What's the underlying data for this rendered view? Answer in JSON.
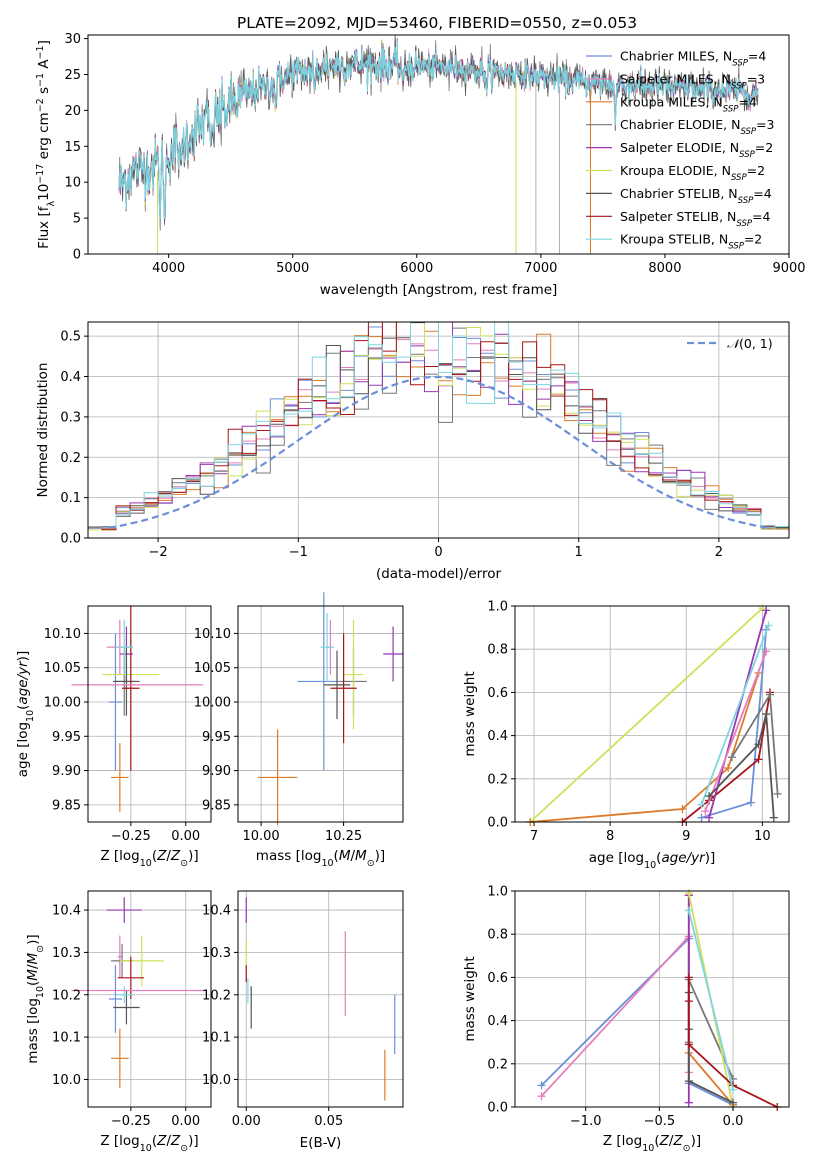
{
  "figure": {
    "title": "PLATE=2092, MJD=53460, FIBERID=0550, z=0.053"
  },
  "colors": {
    "Chabrier MILES": "#6b8fd9",
    "Salpeter MILES": "#e37fbd",
    "Kroupa MILES": "#de7b29",
    "Chabrier ELODIE": "#777777",
    "Salpeter ELODIE": "#9a35b3",
    "Kroupa ELODIE": "#cfe05a",
    "Chabrier STELIB": "#555555",
    "Salpeter STELIB": "#a8141a",
    "Kroupa STELIB": "#7dd6e0"
  },
  "legend_labels": [
    "Chabrier MILES, N$_{SSP}$=4",
    "Salpeter MILES, N$_{SSP}$=3",
    "Kroupa MILES, N$_{SSP}$=4",
    "Chabrier ELODIE, N$_{SSP}$=3",
    "Salpeter ELODIE, N$_{SSP}$=2",
    "Kroupa ELODIE, N$_{SSP}$=2",
    "Chabrier STELIB, N$_{SSP}$=4",
    "Salpeter STELIB, N$_{SSP}$=4",
    "Kroupa STELIB, N$_{SSP}$=2"
  ],
  "legend_display": [
    {
      "name": "Chabrier MILES, N",
      "sub": "SSP",
      "tail": "=4"
    },
    {
      "name": "Salpeter MILES, N",
      "sub": "SSP",
      "tail": "=3"
    },
    {
      "name": "Kroupa MILES, N",
      "sub": "SSP",
      "tail": "=4"
    },
    {
      "name": "Chabrier ELODIE, N",
      "sub": "SSP",
      "tail": "=3"
    },
    {
      "name": "Salpeter ELODIE, N",
      "sub": "SSP",
      "tail": "=2"
    },
    {
      "name": "Kroupa ELODIE, N",
      "sub": "SSP",
      "tail": "=2"
    },
    {
      "name": "Chabrier STELIB, N",
      "sub": "SSP",
      "tail": "=4"
    },
    {
      "name": "Salpeter STELIB, N",
      "sub": "SSP",
      "tail": "=4"
    },
    {
      "name": "Kroupa STELIB, N",
      "sub": "SSP",
      "tail": "=2"
    }
  ],
  "chart_data": [
    {
      "id": "spectrum",
      "type": "line",
      "xlabel": "wavelength [Angstrom, rest frame]",
      "ylabel_parts": [
        "Flux [f",
        "λ",
        "10",
        "−17",
        " erg cm",
        "−2",
        " s",
        "−1",
        " A",
        "−1",
        "]"
      ],
      "xlim": [
        3350,
        9000
      ],
      "ylim": [
        0,
        30.5
      ],
      "xticks": [
        4000,
        5000,
        6000,
        7000,
        8000,
        9000
      ],
      "yticks": [
        0,
        5,
        10,
        15,
        20,
        25,
        30
      ],
      "continuum_knots": [
        [
          3600,
          9.5
        ],
        [
          3700,
          11.5
        ],
        [
          3900,
          12.5
        ],
        [
          4000,
          14
        ],
        [
          4200,
          17
        ],
        [
          4400,
          19.5
        ],
        [
          4600,
          22
        ],
        [
          4800,
          23.5
        ],
        [
          5000,
          25
        ],
        [
          5300,
          26.2
        ],
        [
          5600,
          26.5
        ],
        [
          6000,
          26.3
        ],
        [
          6400,
          25.8
        ],
        [
          6800,
          25.2
        ],
        [
          7200,
          24.2
        ],
        [
          7600,
          23.6
        ],
        [
          8000,
          23.3
        ],
        [
          8400,
          22.8
        ],
        [
          8750,
          22.5
        ]
      ],
      "deep_features": [
        [
          3930,
          3
        ],
        [
          3968,
          3
        ],
        [
          4101,
          12.5
        ],
        [
          4340,
          15
        ],
        [
          4861,
          19.5
        ],
        [
          5175,
          22.5
        ],
        [
          5890,
          23.5
        ],
        [
          6563,
          22.5
        ],
        [
          7600,
          18
        ]
      ],
      "spikes": [
        [
          6800,
          0
        ],
        [
          6960,
          0
        ],
        [
          7150,
          0
        ],
        [
          7400,
          0
        ],
        [
          3910,
          0
        ]
      ],
      "wave_range": [
        3600,
        8750
      ],
      "legend_position": "right"
    },
    {
      "id": "residuals",
      "type": "histogram",
      "xlabel": "(data-model)/error",
      "ylabel": "Normed distribution",
      "xlim": [
        -2.5,
        2.5
      ],
      "ylim": [
        0,
        0.535
      ],
      "xticks": [
        -2,
        -1,
        0,
        1,
        2
      ],
      "yticks": [
        0,
        0.1,
        0.2,
        0.3,
        0.4,
        0.5
      ],
      "bins": 50,
      "legend": "N(0,1)",
      "legend_position": "top-right",
      "grid": true
    },
    {
      "id": "age_vs_Z",
      "type": "errorbar",
      "xlabel": "Z [log10(Z/Z☉)]",
      "ylabel": "age [log10(age/yr)]",
      "xlim": [
        -0.445,
        0.115
      ],
      "ylim": [
        9.825,
        10.14
      ],
      "xticks": [
        -0.25,
        0.0
      ],
      "yticks": [
        9.85,
        9.9,
        9.95,
        10.0,
        10.05,
        10.1
      ],
      "points": [
        {
          "model": "Chabrier MILES",
          "x": -0.32,
          "xerr": 0.03,
          "y": 10.0,
          "yerr": 0.1
        },
        {
          "model": "Salpeter MILES",
          "x": -0.3,
          "xerr": 0.06,
          "y": 10.08,
          "yerr": 0.04
        },
        {
          "model": "Kroupa MILES",
          "x": -0.3,
          "xerr": 0.04,
          "y": 9.89,
          "yerr": 0.05
        },
        {
          "model": "Chabrier ELODIE",
          "x": -0.28,
          "xerr": 0.05,
          "y": 10.03,
          "yerr": 0.05
        },
        {
          "model": "Salpeter ELODIE",
          "x": -0.27,
          "xerr": 0.03,
          "y": 10.07,
          "yerr": 0.04
        },
        {
          "model": "Kroupa ELODIE",
          "x": -0.25,
          "xerr": 0.13,
          "y": 10.04,
          "yerr": 0.07
        },
        {
          "model": "Chabrier STELIB",
          "x": -0.27,
          "xerr": 0.06,
          "y": 10.03,
          "yerr": 0.05
        },
        {
          "model": "Salpeter STELIB",
          "x": -0.25,
          "xerr": 0.04,
          "y": 10.02,
          "yerr": 0.12
        },
        {
          "model": "Kroupa STELIB",
          "x": -0.28,
          "xerr": 0.04,
          "y": 10.08,
          "yerr": 0.04
        },
        {
          "model": "Salpeter MILES",
          "x": -0.22,
          "xerr": 0.3,
          "y": 10.025,
          "yerr": 0.0
        }
      ]
    },
    {
      "id": "age_vs_mass",
      "type": "errorbar",
      "xlabel": "mass [log10(M/M☉)]",
      "ylabel": "",
      "xlim": [
        9.93,
        10.43
      ],
      "ylim": [
        9.825,
        10.14
      ],
      "xticks": [
        10.0,
        10.25
      ],
      "yticks": [
        9.85,
        9.9,
        9.95,
        10.0,
        10.05,
        10.1
      ],
      "points": [
        {
          "model": "Chabrier MILES",
          "x": 10.19,
          "xerr": 0.08,
          "y": 10.03,
          "yerr": 0.13
        },
        {
          "model": "Salpeter MILES",
          "x": 10.21,
          "xerr": 0.01,
          "y": 10.08,
          "yerr": 0.04
        },
        {
          "model": "Kroupa MILES",
          "x": 10.05,
          "xerr": 0.06,
          "y": 9.89,
          "yerr": 0.07
        },
        {
          "model": "Chabrier ELODIE",
          "x": 10.28,
          "xerr": 0.04,
          "y": 10.03,
          "yerr": 0.05
        },
        {
          "model": "Salpeter ELODIE",
          "x": 10.4,
          "xerr": 0.03,
          "y": 10.07,
          "yerr": 0.04
        },
        {
          "model": "Kroupa ELODIE",
          "x": 10.28,
          "xerr": 0.03,
          "y": 10.04,
          "yerr": 0.08
        },
        {
          "model": "Chabrier STELIB",
          "x": 10.23,
          "xerr": 0.04,
          "y": 10.025,
          "yerr": 0.05
        },
        {
          "model": "Salpeter STELIB",
          "x": 10.25,
          "xerr": 0.04,
          "y": 10.02,
          "yerr": 0.08
        },
        {
          "model": "Kroupa STELIB",
          "x": 10.2,
          "xerr": 0.02,
          "y": 10.08,
          "yerr": 0.05
        }
      ]
    },
    {
      "id": "mass_weight_vs_age",
      "type": "line",
      "xlabel": "age [log10(age/yr)]",
      "ylabel": "mass weight",
      "xlim": [
        6.75,
        10.35
      ],
      "ylim": [
        0,
        1.0
      ],
      "xticks": [
        7,
        8,
        9,
        10
      ],
      "yticks": [
        0.0,
        0.2,
        0.4,
        0.6,
        0.8,
        1.0
      ],
      "grid": true,
      "series": [
        {
          "model": "Kroupa ELODIE",
          "x": [
            6.95,
            10.0
          ],
          "y": [
            0.0,
            0.99
          ]
        },
        {
          "model": "Kroupa MILES",
          "x": [
            6.95,
            8.95,
            9.55,
            9.95
          ],
          "y": [
            0.0,
            0.06,
            0.25,
            0.69
          ]
        },
        {
          "model": "Chabrier MILES",
          "x": [
            9.2,
            9.85,
            10.05
          ],
          "y": [
            0.02,
            0.09,
            0.89
          ]
        },
        {
          "model": "Salpeter STELIB",
          "x": [
            8.95,
            9.3,
            9.95,
            10.1
          ],
          "y": [
            0.0,
            0.1,
            0.29,
            0.6
          ]
        },
        {
          "model": "Salpeter ELODIE",
          "x": [
            9.3,
            10.05
          ],
          "y": [
            0.02,
            0.98
          ]
        },
        {
          "model": "Kroupa STELIB",
          "x": [
            9.2,
            10.08
          ],
          "y": [
            0.08,
            0.91
          ]
        },
        {
          "model": "Salpeter MILES",
          "x": [
            9.25,
            10.05
          ],
          "y": [
            0.05,
            0.79
          ]
        },
        {
          "model": "Chabrier STELIB",
          "x": [
            9.3,
            9.95,
            10.05,
            10.15
          ],
          "y": [
            0.12,
            0.36,
            0.5,
            0.02
          ]
        },
        {
          "model": "Chabrier ELODIE",
          "x": [
            9.6,
            10.1,
            10.2
          ],
          "y": [
            0.3,
            0.59,
            0.13
          ]
        }
      ]
    },
    {
      "id": "mass_vs_Z",
      "type": "errorbar",
      "xlabel": "Z [log10(Z/Z☉)]",
      "ylabel": "mass [log10(M/M☉)]",
      "xlim": [
        -0.445,
        0.115
      ],
      "ylim": [
        9.935,
        10.445
      ],
      "xticks": [
        -0.25,
        0.0
      ],
      "yticks": [
        10.0,
        10.1,
        10.2,
        10.3,
        10.4
      ],
      "points": [
        {
          "model": "Chabrier MILES",
          "x": -0.32,
          "xerr": 0.03,
          "y": 10.19,
          "yerr": 0.08
        },
        {
          "model": "Salpeter MILES",
          "x": -0.3,
          "xerr": 0.01,
          "y": 10.29,
          "yerr": 0.05
        },
        {
          "model": "Kroupa MILES",
          "x": -0.3,
          "xerr": 0.04,
          "y": 10.05,
          "yerr": 0.07
        },
        {
          "model": "Chabrier ELODIE",
          "x": -0.29,
          "xerr": 0.05,
          "y": 10.28,
          "yerr": 0.04
        },
        {
          "model": "Salpeter ELODIE",
          "x": -0.28,
          "xerr": 0.08,
          "y": 10.4,
          "yerr": 0.03
        },
        {
          "model": "Kroupa ELODIE",
          "x": -0.2,
          "xerr": 0.1,
          "y": 10.28,
          "yerr": 0.06
        },
        {
          "model": "Chabrier STELIB",
          "x": -0.27,
          "xerr": 0.06,
          "y": 10.17,
          "yerr": 0.04
        },
        {
          "model": "Salpeter STELIB",
          "x": -0.25,
          "xerr": 0.06,
          "y": 10.24,
          "yerr": 0.05
        },
        {
          "model": "Kroupa STELIB",
          "x": -0.28,
          "xerr": 0.04,
          "y": 10.2,
          "yerr": 0.02
        },
        {
          "model": "Salpeter MILES",
          "x": -0.22,
          "xerr": 0.3,
          "y": 10.21,
          "yerr": 0.0
        }
      ]
    },
    {
      "id": "mass_vs_EBV",
      "type": "errorbar",
      "xlabel": "E(B-V)",
      "ylabel": "",
      "xlim": [
        -0.005,
        0.095
      ],
      "ylim": [
        9.935,
        10.445
      ],
      "xticks": [
        0.0,
        0.05
      ],
      "yticks": [
        10.0,
        10.1,
        10.2,
        10.3,
        10.4
      ],
      "points": [
        {
          "model": "Salpeter ELODIE",
          "x": 0.0,
          "xerr": 0,
          "y": 10.4,
          "yerr": 0.03
        },
        {
          "model": "Kroupa ELODIE",
          "x": 0.0,
          "xerr": 0,
          "y": 10.3,
          "yerr": 0.03
        },
        {
          "model": "Salpeter STELIB",
          "x": 0.0,
          "xerr": 0,
          "y": 10.25,
          "yerr": 0.02
        },
        {
          "model": "Kroupa STELIB",
          "x": 0.001,
          "xerr": 0,
          "y": 10.21,
          "yerr": 0.03
        },
        {
          "model": "Chabrier STELIB",
          "x": 0.003,
          "xerr": 0,
          "y": 10.17,
          "yerr": 0.05
        },
        {
          "model": "Salpeter MILES",
          "x": 0.06,
          "xerr": 0,
          "y": 10.25,
          "yerr": 0.1
        },
        {
          "model": "Kroupa MILES",
          "x": 0.084,
          "xerr": 0,
          "y": 10.01,
          "yerr": 0.06
        },
        {
          "model": "Chabrier MILES",
          "x": 0.09,
          "xerr": 0,
          "y": 10.13,
          "yerr": 0.07
        }
      ]
    },
    {
      "id": "mass_weight_vs_Z",
      "type": "line",
      "xlabel": "Z [log10(Z/Z☉)]",
      "ylabel": "mass weight",
      "xlim": [
        -1.48,
        0.38
      ],
      "ylim": [
        0,
        1.0
      ],
      "xticks": [
        -1.0,
        -0.5,
        0.0
      ],
      "yticks": [
        0.0,
        0.2,
        0.4,
        0.6,
        0.8,
        1.0
      ],
      "grid": true,
      "series": [
        {
          "model": "Chabrier MILES",
          "x": [
            -1.3,
            -0.3,
            -0.3,
            0.0
          ],
          "y": [
            0.1,
            0.78,
            0.11,
            0.01
          ]
        },
        {
          "model": "Salpeter MILES",
          "x": [
            -1.3,
            -0.3,
            -0.3
          ],
          "y": [
            0.05,
            0.79,
            0.16
          ]
        },
        {
          "model": "Kroupa MILES",
          "x": [
            -0.3,
            -0.3,
            0.0
          ],
          "y": [
            0.98,
            0.25,
            0.01
          ]
        },
        {
          "model": "Chabrier ELODIE",
          "x": [
            -0.3,
            -0.3,
            0.0
          ],
          "y": [
            0.3,
            0.59,
            0.13
          ]
        },
        {
          "model": "Salpeter ELODIE",
          "x": [
            -0.3,
            -0.3
          ],
          "y": [
            0.02,
            0.98
          ]
        },
        {
          "model": "Kroupa ELODIE",
          "x": [
            -0.3,
            0.0
          ],
          "y": [
            0.99,
            0.0
          ]
        },
        {
          "model": "Chabrier STELIB",
          "x": [
            -0.3,
            -0.3,
            -0.3,
            0.0
          ],
          "y": [
            0.53,
            0.36,
            0.12,
            0.02
          ]
        },
        {
          "model": "Salpeter STELIB",
          "x": [
            -0.3,
            -0.3,
            -0.3,
            0.0,
            0.3
          ],
          "y": [
            0.6,
            0.49,
            0.29,
            0.1,
            0.0
          ]
        },
        {
          "model": "Kroupa STELIB",
          "x": [
            -0.3,
            0.0
          ],
          "y": [
            0.91,
            0.08
          ]
        }
      ]
    }
  ]
}
